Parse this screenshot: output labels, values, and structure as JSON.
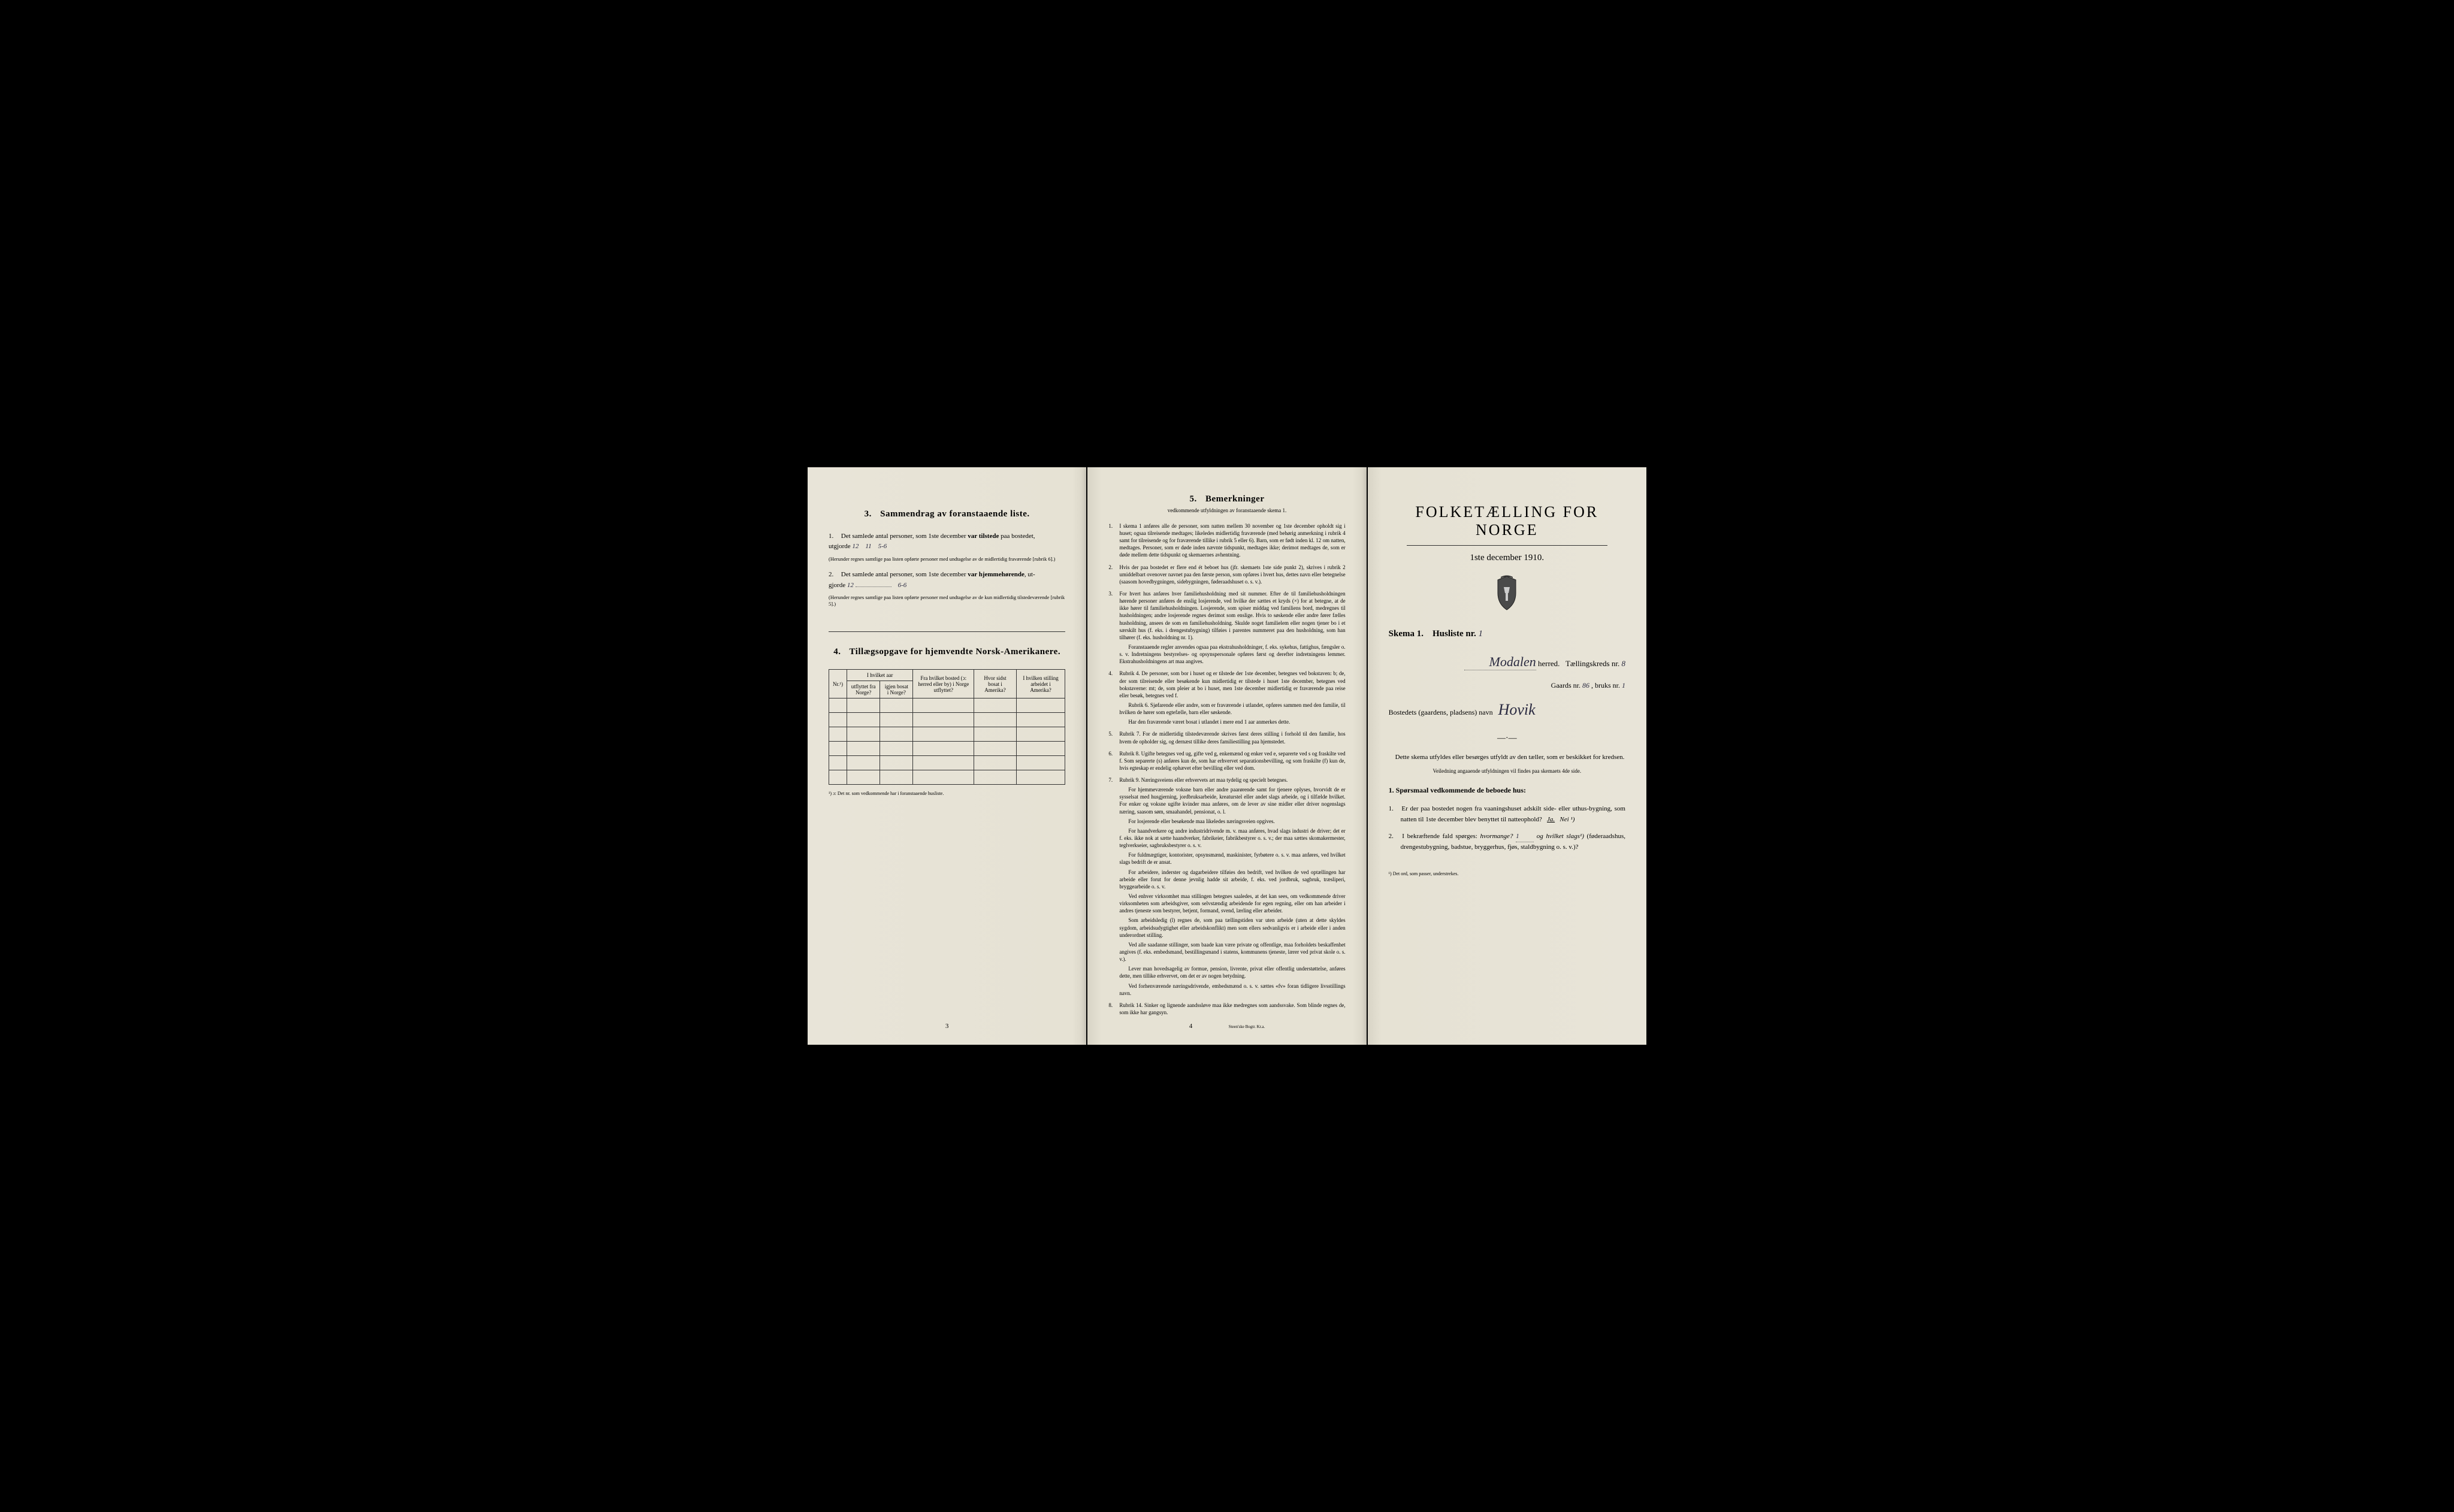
{
  "colors": {
    "paper": "#e8e4d8",
    "ink": "#1a1a1a",
    "handwriting": "#2a2a40",
    "background": "#000000"
  },
  "page3": {
    "section3_title": "Sammendrag av foranstaaende liste.",
    "section3_num": "3.",
    "item1_text": "Det samlede antal personer, som 1ste december",
    "item1_bold": "var tilstede",
    "item1_suffix": "paa bostedet,",
    "item1_utgjorde": "utgjorde",
    "item1_hw1": "12",
    "item1_hw2": "11",
    "item1_hw3": "5-6",
    "item1_note": "(Herunder regnes samtlige paa listen opførte personer med undtagelse av de midlertidig fraværende [rubrik 6].)",
    "item2_text": "Det samlede antal personer, som 1ste december",
    "item2_bold": "var hjemmehørende",
    "item2_suffix": ", ut-",
    "item2_gjorde": "gjorde",
    "item2_hw1": "12",
    "item2_hw2": "6-6",
    "item2_note": "(Herunder regnes samtlige paa listen opførte personer med undtagelse av de kun midlertidig tilstedeværende [rubrik 5].)",
    "section4_title": "Tillægsopgave for hjemvendte Norsk-Amerikanere.",
    "section4_num": "4.",
    "table_headers": {
      "nr": "Nr.¹)",
      "col1_top": "I hvilket aar",
      "col1_a": "utflyttet fra Norge?",
      "col1_b": "igjen bosat i Norge?",
      "col2": "Fra hvilket bosted (ɔ: herred eller by) i Norge utflyttet?",
      "col3": "Hvor sidst bosat i Amerika?",
      "col4": "I hvilken stilling arbeidet i Amerika?"
    },
    "footnote": "¹) ɔ: Det nr. som vedkommende har i foranstaaende husliste.",
    "page_num": "3"
  },
  "page4": {
    "section_num": "5.",
    "section_title": "Bemerkninger",
    "subtitle": "vedkommende utfyldningen av foranstaaende skema 1.",
    "rules": [
      {
        "num": "1.",
        "text": "I skema 1 anføres alle de personer, som natten mellem 30 november og 1ste december opholdt sig i huset; ogsaa tilreisende medtages; likeledes midlertidig fraværende (med behørig anmerkning i rubrik 4 samt for tilreisende og for fraværende tillike i rubrik 5 eller 6). Barn, som er født inden kl. 12 om natten, medtages. Personer, som er døde inden nævnte tidspunkt, medtages ikke; derimot medtages de, som er døde mellem dette tidspunkt og skemaernes avhentning."
      },
      {
        "num": "2.",
        "text": "Hvis der paa bostedet er flere end ét beboet hus (jfr. skemaets 1ste side punkt 2), skrives i rubrik 2 umiddelbart ovenover navnet paa den første person, som opføres i hvert hus, dettes navn eller betegnelse (saasom hovedbygningen, sidebygningen, føderaadshuset o. s. v.)."
      },
      {
        "num": "3.",
        "text": "For hvert hus anføres hver familiehusholdning med sit nummer. Efter de til familiehusholdningen hørende personer anføres de enslig losjerende, ved hvilke der sættes et kryds (×) for at betegne, at de ikke hører til familiehusholdningen. Losjerende, som spiser middag ved familiens bord, medregnes til husholdningen; andre losjerende regnes derimot som enslige. Hvis to søskende eller andre fører fælles husholdning, ansees de som en familiehusholdning. Skulde noget familielem eller nogen tjener bo i et særskilt hus (f. eks. i drengestubygning) tilføies i parentes nummeret paa den husholdning, som han tilhører (f. eks. husholdning nr. 1).",
        "paras": [
          "Foranstaaende regler anvendes ogsaa paa ekstrahusholdninger, f. eks. sykehus, fattighus, fængsler o. s. v. Indretningens bestyrelses- og opsynspersonale opføres først og derefter indretningens lemmer. Ekstrahusholdningens art maa angives."
        ]
      },
      {
        "num": "4.",
        "text": "Rubrik 4. De personer, som bor i huset og er tilstede der 1ste december, betegnes ved bokstaven: b; de, der som tilreisende eller besøkende kun midlertidig er tilstede i huset 1ste december, betegnes ved bokstaverne: mt; de, som pleier at bo i huset, men 1ste december midlertidig er fraværende paa reise eller besøk, betegnes ved f.",
        "paras": [
          "Rubrik 6. Sjøfarende eller andre, som er fraværende i utlandet, opføres sammen med den familie, til hvilken de hører som egtefælle, barn eller søskende.",
          "Har den fraværende været bosat i utlandet i mere end 1 aar anmerkes dette."
        ]
      },
      {
        "num": "5.",
        "text": "Rubrik 7. For de midlertidig tilstedeværende skrives først deres stilling i forhold til den familie, hos hvem de opholder sig, og dernæst tillike deres familiestilling paa hjemstedet."
      },
      {
        "num": "6.",
        "text": "Rubrik 8. Ugifte betegnes ved ug, gifte ved g, enkemænd og enker ved e, separerte ved s og fraskilte ved f. Som separerte (s) anføres kun de, som har erhvervet separationsbevilling, og som fraskilte (f) kun de, hvis egteskap er endelig ophævet efter bevilling eller ved dom."
      },
      {
        "num": "7.",
        "text": "Rubrik 9. Næringsveiens eller erhvervets art maa tydelig og specielt betegnes.",
        "paras": [
          "For hjemmeværende voksne barn eller andre paarørende samt for tjenere oplyses, hvorvidt de er sysselsat med husgjerning, jordbruksarbeide, kreaturstel eller andet slags arbeide, og i tilfælde hvilket. For enker og voksne ugifte kvinder maa anføres, om de lever av sine midler eller driver nogenslags næring, saasom søm, smaahandel, pensionat, o. l.",
          "For losjerende eller besøkende maa likeledes næringsveien opgives.",
          "For haandverkere og andre industridrivende m. v. maa anføres, hvad slags industri de driver; det er f. eks. ikke nok at sætte haandverker, fabrikeier, fabrikbestyrer o. s. v.; der maa sættes skomakermester, teglverkseier, sagbruksbestyrer o. s. v.",
          "For fuldmægtiger, kontorister, opsynsmænd, maskinister, fyrbøtere o. s. v. maa anføres, ved hvilket slags bedrift de er ansat.",
          "For arbeidere, inderster og dagarbeidere tilføies den bedrift, ved hvilken de ved optællingen har arbeide eller forut for denne jevnlig hadde sit arbeide, f. eks. ved jordbruk, sagbruk, træsliperi, bryggearbeide o. s. v.",
          "Ved enhver virksomhet maa stillingen betegnes saaledes, at det kan sees, om vedkommende driver virksomheten som arbeidsgiver, som selvstændig arbeidende for egen regning, eller om han arbeider i andres tjeneste som bestyrer, betjent, formand, svend, lærling eller arbeider.",
          "Som arbeidsledig (l) regnes de, som paa tællingstiden var uten arbeide (uten at dette skyldes sygdom, arbeidsudygtighet eller arbeidskonflikt) men som ellers sedvanligvis er i arbeide eller i anden underordnet stilling.",
          "Ved alle saadanne stillinger, som baade kan være private og offentlige, maa forholdets beskaffenhet angives (f. eks. embedsmand, bestillingsmand i statens, kommunens tjeneste, lærer ved privat skole o. s. v.).",
          "Lever man hovedsagelig av formue, pension, livrente, privat eller offentlig understøttelse, anføres dette, men tillike erhvervet, om det er av nogen betydning.",
          "Ved forhenværende næringsdrivende, embedsmænd o. s. v. sættes «fv» foran tidligere livsstillings navn."
        ]
      },
      {
        "num": "8.",
        "text": "Rubrik 14. Sinker og lignende aandssløve maa ikke medregnes som aandssvake. Som blinde regnes de, som ikke har gangsyn."
      }
    ],
    "page_num": "4",
    "printer": "Steen'ske Bogtr. Kr.a."
  },
  "pageRight": {
    "main_title": "FOLKETÆLLING FOR NORGE",
    "date": "1ste december 1910.",
    "skema_label": "Skema 1.",
    "husliste_label": "Husliste nr.",
    "husliste_hw": "1",
    "herred_hw": "Modalen",
    "herred_label": "herred.",
    "kreds_label": "Tællingskreds nr.",
    "kreds_hw": "8",
    "gaards_label": "Gaards nr.",
    "gaards_hw": "86",
    "bruks_label": ", bruks nr.",
    "bruks_hw": "1",
    "bosted_label": "Bostedets (gaardens, pladsens) navn",
    "bosted_hw": "Hovik",
    "instruction1": "Dette skema utfyldes eller besørges utfyldt av den tæller, som er beskikket for kredsen.",
    "instruction2": "Veiledning angaaende utfyldningen vil findes paa skemaets 4de side.",
    "q_header_num": "1.",
    "q_header": "Spørsmaal vedkommende de beboede hus:",
    "q1_num": "1.",
    "q1_text": "Er der paa bostedet nogen fra vaaningshuset adskilt side- eller uthus-bygning, som natten til 1ste december blev benyttet til natteophold?",
    "q1_ja": "Ja.",
    "q1_nei": "Nei ¹)",
    "q2_num": "2.",
    "q2_text_a": "I bekræftende fald spørges:",
    "q2_hvormange": "hvormange?",
    "q2_hw": "1",
    "q2_text_b": "og hvilket slags¹)",
    "q2_text_c": "(føderaadshus, drengestubygning, badstue, bryggerhus, fjøs, staldbygning o. s. v.)?",
    "footnote": "¹) Det ord, som passer, understrekes."
  }
}
